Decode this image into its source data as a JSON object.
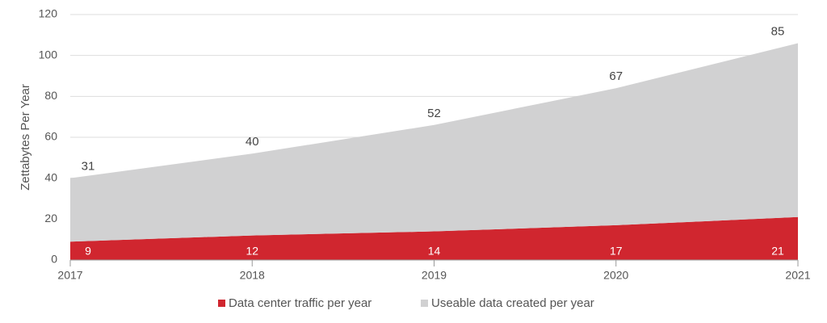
{
  "chart_data": {
    "type": "area",
    "stacked": true,
    "y_label": "Zettabytes Per Year",
    "categories": [
      "2017",
      "2018",
      "2019",
      "2020",
      "2021"
    ],
    "series": [
      {
        "name": "Data center traffic per year",
        "color": "#d0262f",
        "values": [
          9,
          12,
          14,
          17,
          21
        ]
      },
      {
        "name": "Useable data created per year",
        "color": "#d1d1d2",
        "values": [
          31,
          40,
          52,
          67,
          85
        ]
      }
    ],
    "ylim": [
      0,
      120
    ],
    "yticks": [
      0,
      20,
      40,
      60,
      80,
      100,
      120
    ],
    "grid": true
  }
}
